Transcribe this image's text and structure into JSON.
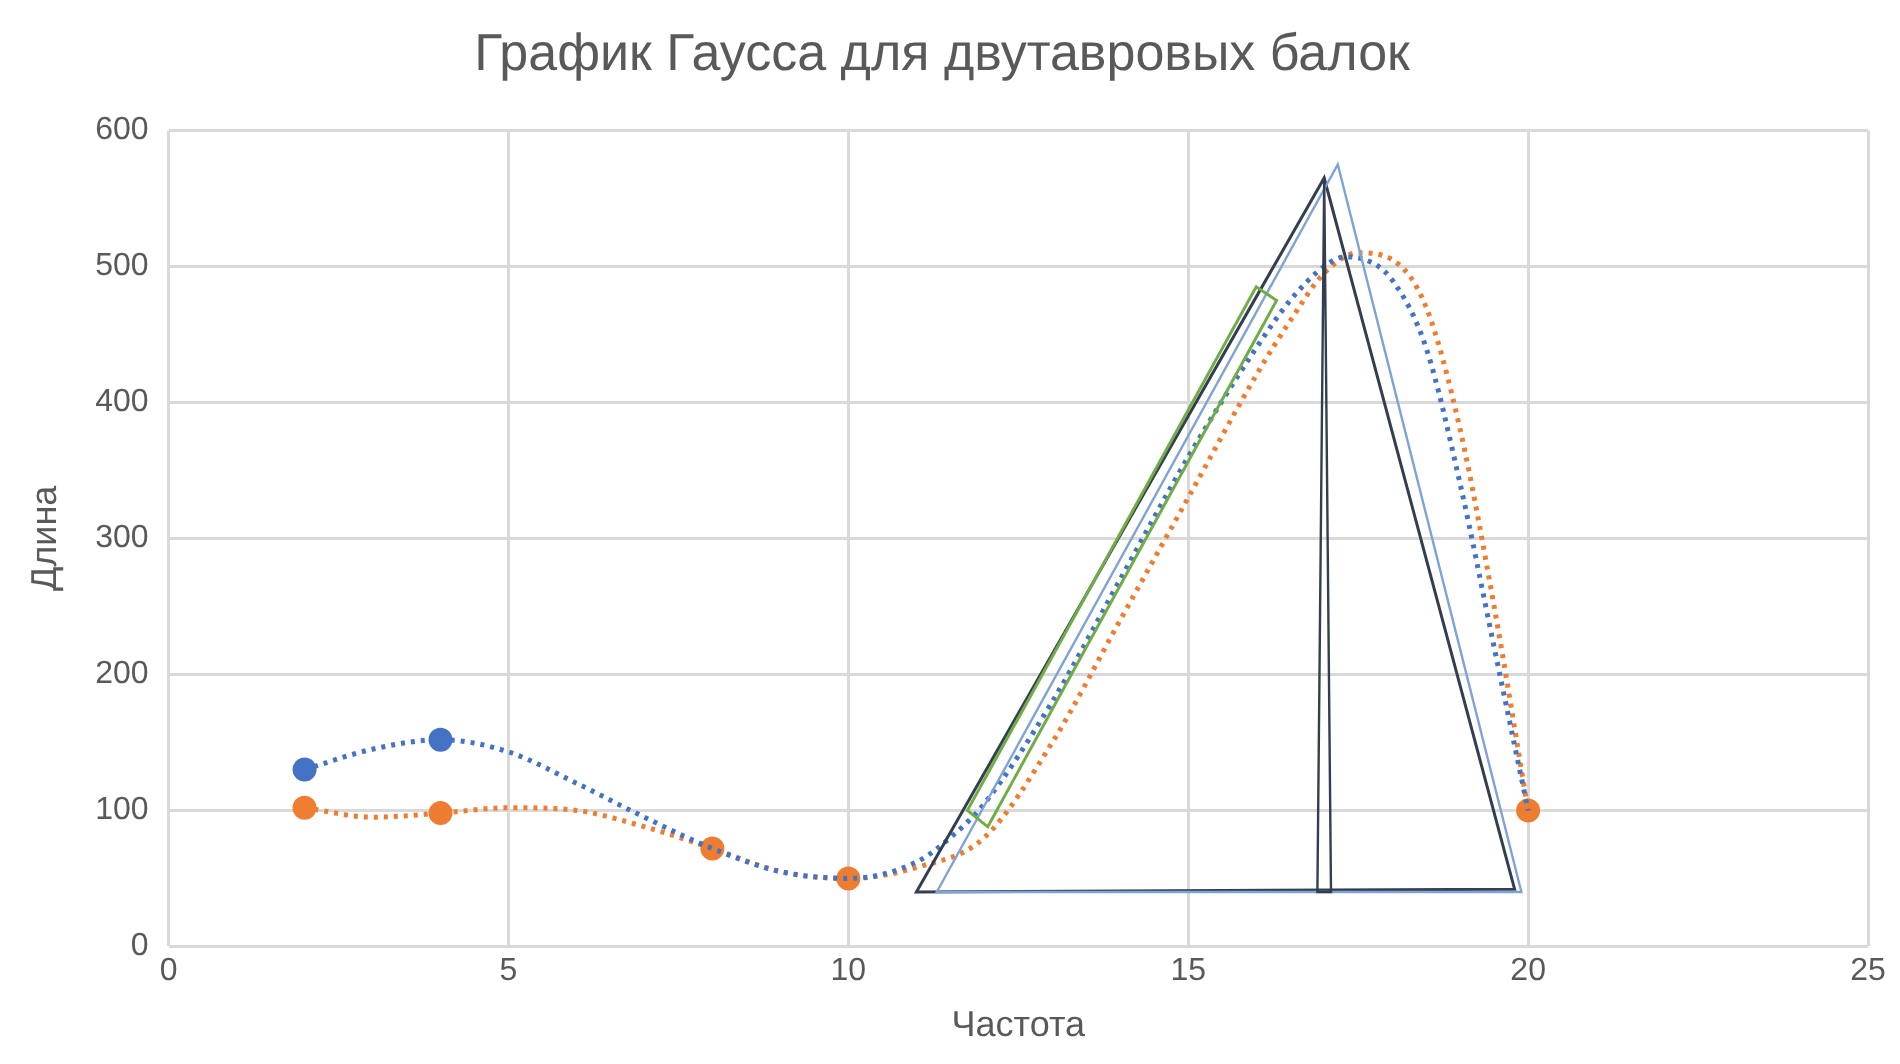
{
  "chart_data": {
    "type": "line",
    "title": "График Гаусса для двутавровых балок",
    "xlabel": "Частота",
    "ylabel": "Длина",
    "xlim": [
      0,
      25
    ],
    "xticks": [
      0,
      5,
      10,
      15,
      20,
      25
    ],
    "ylim": [
      0,
      600
    ],
    "yticks": [
      0,
      100,
      200,
      300,
      400,
      500,
      600
    ],
    "grid": true,
    "legend": false,
    "series": [
      {
        "type": "line",
        "color": "#4472c4",
        "marker": "none",
        "line_style": "dotted",
        "x": [
          2,
          3,
          4,
          5,
          6,
          7,
          8,
          9,
          10,
          11,
          11.5,
          12,
          13,
          14,
          15,
          16,
          16.5,
          17,
          17.3,
          17.6,
          18,
          18.5,
          19,
          19.5,
          20
        ],
        "values": [
          130,
          145,
          152,
          143,
          120,
          95,
          72,
          55,
          50,
          62,
          80,
          105,
          180,
          270,
          360,
          440,
          475,
          500,
          507,
          505,
          490,
          440,
          340,
          220,
          100
        ]
      },
      {
        "type": "line",
        "color": "#ed7d31",
        "marker": "none",
        "line_style": "dotted",
        "x": [
          2,
          3,
          4,
          5,
          6,
          7,
          8,
          9,
          10,
          11,
          12,
          13,
          14,
          15,
          16,
          16.5,
          17,
          17.5,
          18,
          18.5,
          19,
          19.5,
          20
        ],
        "values": [
          102,
          95,
          98,
          102,
          100,
          88,
          72,
          55,
          50,
          58,
          80,
          150,
          240,
          330,
          420,
          460,
          495,
          510,
          505,
          470,
          380,
          250,
          100
        ]
      },
      {
        "type": "scatter",
        "color": "#4472c4",
        "marker": "circle",
        "x": [
          2,
          4
        ],
        "values": [
          130,
          152
        ]
      },
      {
        "type": "scatter",
        "color": "#ed7d31",
        "marker": "circle",
        "x": [
          2,
          4,
          8,
          10,
          20
        ],
        "values": [
          102,
          98,
          72,
          50,
          100
        ]
      }
    ]
  }
}
